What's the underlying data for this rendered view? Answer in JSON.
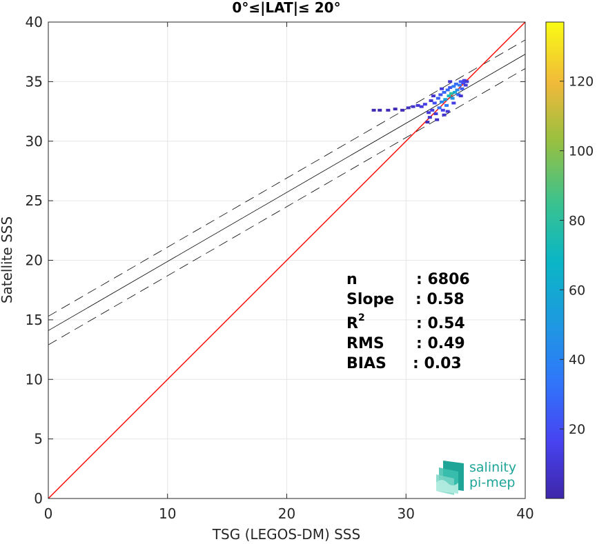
{
  "chart_data": {
    "type": "scatter",
    "title": "0°≤|LAT|≤ 20°",
    "xlabel": "TSG (LEGOS-DM) SSS",
    "ylabel": "Satellite SSS",
    "xlim": [
      0,
      40
    ],
    "ylim": [
      0,
      40
    ],
    "xticks": [
      "0",
      "10",
      "20",
      "30",
      "40"
    ],
    "yticks": [
      "0",
      "5",
      "10",
      "15",
      "20",
      "25",
      "30",
      "35",
      "40"
    ],
    "grid": true,
    "colorbar": {
      "range": [
        0,
        137
      ],
      "ticks": [
        "20",
        "40",
        "60",
        "80",
        "100",
        "120"
      ],
      "tick_values": [
        20,
        40,
        60,
        80,
        100,
        120
      ],
      "colormap": "parula"
    },
    "lines": {
      "identity": {
        "slope": 1,
        "intercept": 0,
        "color": "#ff0000"
      },
      "fit": {
        "slope": 0.58,
        "intercept": 14.1,
        "color": "#000000"
      },
      "fit_upper": {
        "slope": 0.58,
        "intercept": 15.3,
        "style": "dashed"
      },
      "fit_lower": {
        "slope": 0.58,
        "intercept": 12.9,
        "style": "dashed"
      }
    },
    "density_points": [
      [
        27.3,
        32.6,
        2
      ],
      [
        27.8,
        32.6,
        2
      ],
      [
        28.5,
        32.6,
        3
      ],
      [
        29.1,
        32.7,
        3
      ],
      [
        29.7,
        32.6,
        4
      ],
      [
        30.2,
        32.8,
        6
      ],
      [
        30.6,
        32.9,
        8
      ],
      [
        31.0,
        33.0,
        10
      ],
      [
        31.3,
        32.9,
        12
      ],
      [
        31.6,
        33.1,
        14
      ],
      [
        31.9,
        32.4,
        10
      ],
      [
        32.0,
        32.0,
        8
      ],
      [
        32.2,
        32.6,
        14
      ],
      [
        32.4,
        33.2,
        20
      ],
      [
        32.5,
        32.3,
        12
      ],
      [
        32.7,
        33.6,
        25
      ],
      [
        32.8,
        32.8,
        30
      ],
      [
        32.9,
        33.9,
        22
      ],
      [
        33.0,
        33.3,
        40
      ],
      [
        33.1,
        32.6,
        16
      ],
      [
        33.2,
        34.1,
        28
      ],
      [
        33.3,
        33.5,
        55
      ],
      [
        33.4,
        33.0,
        35
      ],
      [
        33.5,
        34.3,
        30
      ],
      [
        33.6,
        33.8,
        70
      ],
      [
        33.7,
        34.5,
        24
      ],
      [
        33.8,
        34.0,
        80
      ],
      [
        33.9,
        33.6,
        48
      ],
      [
        34.0,
        34.6,
        36
      ],
      [
        34.1,
        34.1,
        60
      ],
      [
        34.2,
        34.8,
        30
      ],
      [
        34.3,
        34.3,
        42
      ],
      [
        34.4,
        33.9,
        28
      ],
      [
        34.5,
        34.7,
        35
      ],
      [
        34.6,
        35.0,
        22
      ],
      [
        34.7,
        34.4,
        26
      ],
      [
        34.8,
        34.9,
        20
      ],
      [
        34.9,
        35.1,
        14
      ],
      [
        35.0,
        34.7,
        12
      ],
      [
        35.1,
        35.0,
        10
      ],
      [
        32.3,
        33.8,
        8
      ],
      [
        32.1,
        33.4,
        9
      ],
      [
        33.5,
        32.5,
        10
      ],
      [
        34.0,
        33.2,
        14
      ],
      [
        34.6,
        33.8,
        9
      ],
      [
        33.0,
        34.4,
        12
      ],
      [
        33.7,
        35.0,
        9
      ],
      [
        32.6,
        31.8,
        6
      ],
      [
        31.8,
        31.6,
        5
      ],
      [
        33.2,
        32.2,
        8
      ]
    ],
    "stats": {
      "n_label": "n",
      "n_value": ": 6806",
      "slope_label": "Slope",
      "slope_value": ": 0.58",
      "r2_label": "R",
      "r2_sup": "2",
      "r2_value": ": 0.54",
      "rms_label": "RMS",
      "rms_value": ": 0.49",
      "bias_label": "BIAS",
      "bias_value": ": 0.03"
    }
  },
  "logo": {
    "line1": "salinity",
    "line2": "pi-mep"
  },
  "colors": {
    "identity_line": "#ff0000",
    "fit_line": "#000000",
    "grid": "#e6e6e6",
    "axes": "#262626",
    "logo": "#1ea597"
  }
}
